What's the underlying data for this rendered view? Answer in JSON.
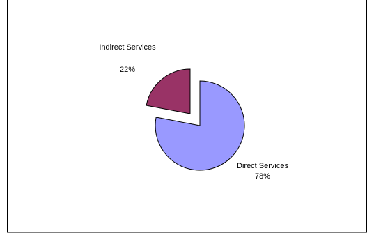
{
  "chart_data": {
    "type": "pie",
    "title": "",
    "slices": [
      {
        "label": "Direct Services",
        "percent_label": "78%",
        "value": 78,
        "color": "#9999ff",
        "exploded": false
      },
      {
        "label": "Indirect Services",
        "percent_label": "22%",
        "value": 22,
        "color": "#993366",
        "exploded": true
      }
    ],
    "legend": "none"
  }
}
